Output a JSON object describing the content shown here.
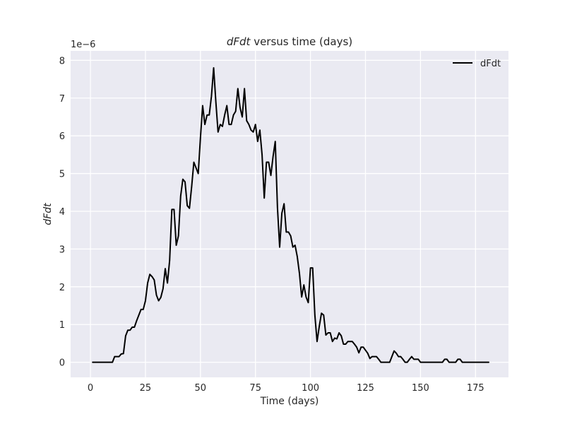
{
  "chart_data": {
    "type": "line",
    "title_italic": "dFdt",
    "title_rest": " versus time (days)",
    "xlabel": "Time (days)",
    "ylabel": "dFdt",
    "offset_text": "1e−6",
    "xlim": [
      -9,
      190
    ],
    "ylim": [
      -4e-07,
      8.25e-06
    ],
    "xticks": [
      0,
      25,
      50,
      75,
      100,
      125,
      150,
      175
    ],
    "xtick_labels": [
      "0",
      "25",
      "50",
      "75",
      "100",
      "125",
      "150",
      "175"
    ],
    "yticks": [
      0,
      1e-06,
      2e-06,
      3e-06,
      4e-06,
      5e-06,
      6e-06,
      7e-06,
      8e-06
    ],
    "ytick_labels": [
      "0",
      "1",
      "2",
      "3",
      "4",
      "5",
      "6",
      "7",
      "8"
    ],
    "grid": true,
    "legend_position": "top-right",
    "series": [
      {
        "name": "dFdt",
        "color": "#000000",
        "x": [
          1,
          2,
          3,
          4,
          5,
          6,
          7,
          8,
          9,
          10,
          11,
          12,
          13,
          14,
          15,
          16,
          17,
          18,
          19,
          20,
          21,
          22,
          23,
          24,
          25,
          26,
          27,
          28,
          29,
          30,
          31,
          32,
          33,
          34,
          35,
          36,
          37,
          38,
          39,
          40,
          41,
          42,
          43,
          44,
          45,
          46,
          47,
          48,
          49,
          50,
          51,
          52,
          53,
          54,
          55,
          56,
          57,
          58,
          59,
          60,
          61,
          62,
          63,
          64,
          65,
          66,
          67,
          68,
          69,
          70,
          71,
          72,
          73,
          74,
          75,
          76,
          77,
          78,
          79,
          80,
          81,
          82,
          83,
          84,
          85,
          86,
          87,
          88,
          89,
          90,
          91,
          92,
          93,
          94,
          95,
          96,
          97,
          98,
          99,
          100,
          101,
          102,
          103,
          104,
          105,
          106,
          107,
          108,
          109,
          110,
          111,
          112,
          113,
          114,
          115,
          116,
          117,
          118,
          119,
          120,
          121,
          122,
          123,
          124,
          125,
          126,
          127,
          128,
          129,
          130,
          131,
          132,
          133,
          134,
          135,
          136,
          137,
          138,
          139,
          140,
          141,
          142,
          143,
          144,
          145,
          146,
          147,
          148,
          149,
          150,
          151,
          152,
          153,
          154,
          155,
          156,
          157,
          158,
          159,
          160,
          161,
          162,
          163,
          164,
          165,
          166,
          167,
          168,
          169,
          170,
          171,
          172,
          173,
          174,
          175,
          176,
          177,
          178,
          179,
          180,
          181
        ],
        "values": [
          0,
          0,
          0,
          0,
          0,
          0,
          0,
          0,
          0,
          0,
          1.5e-07,
          1.5e-07,
          1.5e-07,
          2.2e-07,
          2.3e-07,
          7e-07,
          8.5e-07,
          8.5e-07,
          9.3e-07,
          9.3e-07,
          1.1e-06,
          1.25e-06,
          1.4e-06,
          1.4e-06,
          1.63e-06,
          2.1e-06,
          2.33e-06,
          2.27e-06,
          2.18e-06,
          1.78e-06,
          1.63e-06,
          1.72e-06,
          1.95e-06,
          2.48e-06,
          2.1e-06,
          2.7e-06,
          4.05e-06,
          4.05e-06,
          3.1e-06,
          3.35e-06,
          4.4e-06,
          4.85e-06,
          4.78e-06,
          4.15e-06,
          4.08e-06,
          4.65e-06,
          5.3e-06,
          5.15e-06,
          5e-06,
          5.95e-06,
          6.8e-06,
          6.3e-06,
          6.55e-06,
          6.55e-06,
          7.05e-06,
          7.8e-06,
          6.9e-06,
          6.1e-06,
          6.3e-06,
          6.25e-06,
          6.55e-06,
          6.8e-06,
          6.3e-06,
          6.3e-06,
          6.55e-06,
          6.65e-06,
          7.25e-06,
          6.75e-06,
          6.5e-06,
          7.25e-06,
          6.4e-06,
          6.3e-06,
          6.15e-06,
          6.1e-06,
          6.3e-06,
          5.85e-06,
          6.15e-06,
          5.5e-06,
          4.35e-06,
          5.3e-06,
          5.3e-06,
          4.95e-06,
          5.45e-06,
          5.85e-06,
          4.1e-06,
          3.05e-06,
          3.95e-06,
          4.2e-06,
          3.45e-06,
          3.45e-06,
          3.35e-06,
          3.05e-06,
          3.1e-06,
          2.8e-06,
          2.35e-06,
          1.73e-06,
          2.05e-06,
          1.73e-06,
          1.58e-06,
          2.5e-06,
          2.5e-06,
          1.25e-06,
          5.5e-07,
          9.5e-07,
          1.3e-06,
          1.25e-06,
          7.2e-07,
          7.8e-07,
          7.8e-07,
          5.5e-07,
          6.4e-07,
          6.2e-07,
          7.8e-07,
          7e-07,
          4.8e-07,
          4.8e-07,
          5.5e-07,
          5.5e-07,
          5.5e-07,
          4.8e-07,
          4e-07,
          2.5e-07,
          4e-07,
          4e-07,
          3.2e-07,
          2.4e-07,
          1e-07,
          1.5e-07,
          1.5e-07,
          1.5e-07,
          8e-08,
          0,
          0,
          0,
          0,
          0,
          1.5e-07,
          3e-07,
          2.4e-07,
          1.5e-07,
          1.5e-07,
          8e-08,
          0,
          0,
          8e-08,
          1.5e-07,
          8e-08,
          8e-08,
          8e-08,
          0,
          0,
          0,
          0,
          0,
          0,
          0,
          0,
          0,
          0,
          0,
          8e-08,
          8e-08,
          0,
          0,
          0,
          0,
          8e-08,
          8e-08,
          0,
          0,
          0,
          0,
          0,
          0,
          0,
          0,
          0,
          0,
          0,
          0,
          0
        ]
      }
    ]
  }
}
